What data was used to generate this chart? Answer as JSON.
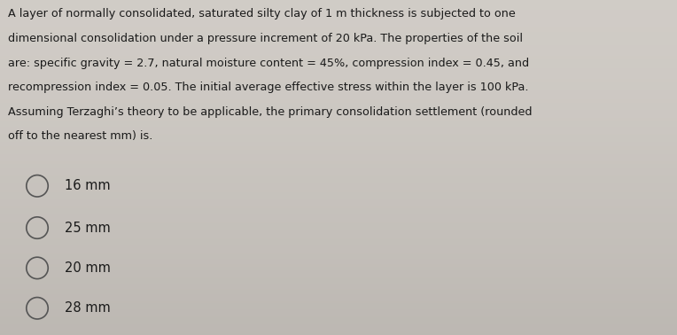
{
  "background_color": "#cdc8c2",
  "text_color": "#1a1a1a",
  "question_lines": [
    "A layer of normally consolidated, saturated silty clay of 1 m thickness is subjected to one",
    "dimensional consolidation under a pressure increment of 20 kPa. The properties of the soil",
    "are: specific gravity = 2.7, natural moisture content = 45%, compression index = 0.45, and",
    "recompression index = 0.05. The initial average effective stress within the layer is 100 kPa.",
    "Assuming Terzaghi’s theory to be applicable, the primary consolidation settlement (rounded",
    "off to the nearest mm) is."
  ],
  "options": [
    "16 mm",
    "25 mm",
    "20 mm",
    "28 mm"
  ],
  "question_fontsize": 9.2,
  "option_fontsize": 10.5,
  "circle_color": "#555555",
  "circle_linewidth": 1.2
}
